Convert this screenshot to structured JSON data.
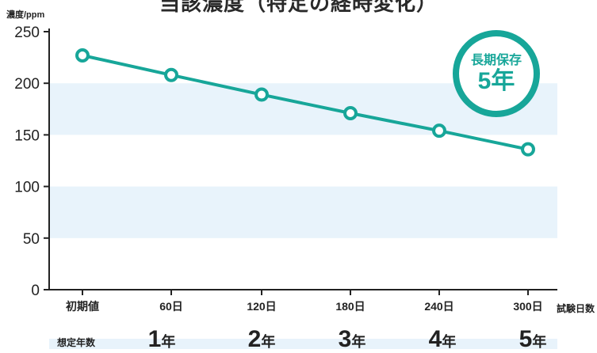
{
  "header": {
    "title_partial": "当該濃度（特定の経時変化）"
  },
  "chart_data": {
    "type": "line",
    "ylabel": "濃度/ppm",
    "xlabel": "試験日数",
    "ylim": [
      0,
      250
    ],
    "yticks": [
      0,
      50,
      100,
      150,
      200,
      250
    ],
    "categories": [
      "初期値",
      "60日",
      "120日",
      "180日",
      "240日",
      "300日"
    ],
    "values": [
      227,
      208,
      189,
      171,
      154,
      136
    ],
    "grid_bands": true
  },
  "badge": {
    "line1": "長期保存",
    "line2": "5年"
  },
  "years_row": {
    "label": "想定年数",
    "items": [
      {
        "num": "1",
        "unit": "年"
      },
      {
        "num": "2",
        "unit": "年"
      },
      {
        "num": "3",
        "unit": "年"
      },
      {
        "num": "4",
        "unit": "年"
      },
      {
        "num": "5",
        "unit": "年"
      }
    ]
  },
  "colors": {
    "accent": "#17a699",
    "band": "#e8f3fb",
    "axis": "#222222"
  }
}
